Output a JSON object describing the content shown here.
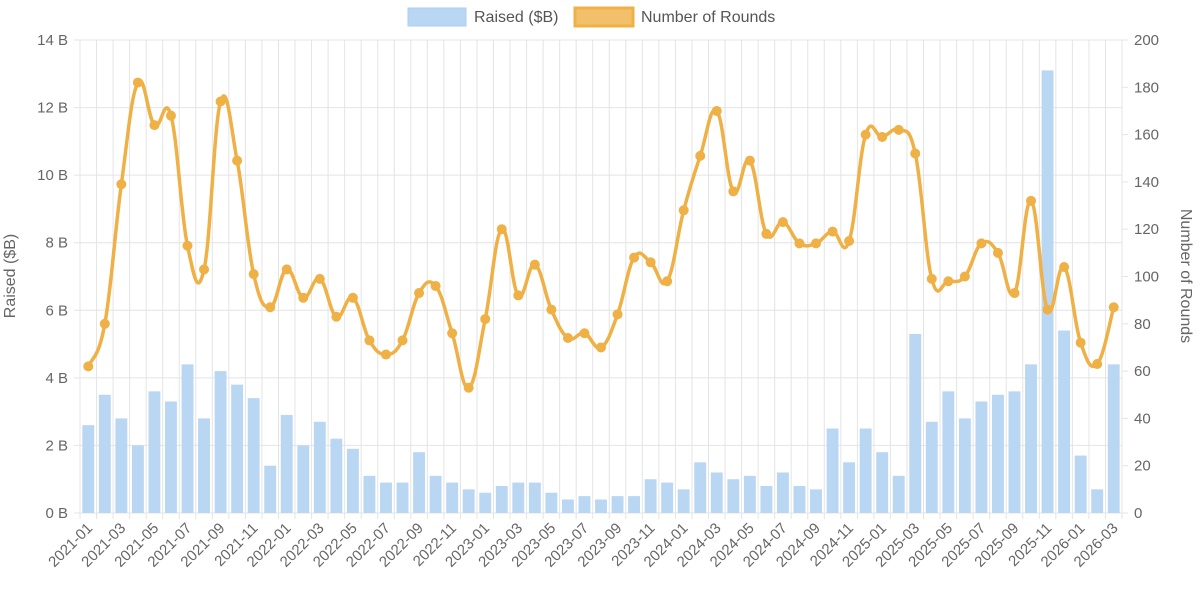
{
  "chart_data": {
    "type": "bar+line",
    "legend_position": "top-center",
    "grid": true,
    "legend": [
      {
        "label": "Raised ($B)",
        "swatch": "bar"
      },
      {
        "label": "Number of Rounds",
        "swatch": "line"
      }
    ],
    "y_left": {
      "label": "Raised ($B)",
      "range": [
        0,
        14
      ],
      "ticks": [
        "0 B",
        "2 B",
        "4 B",
        "6 B",
        "8 B",
        "10 B",
        "12 B",
        "14 B"
      ]
    },
    "y_right": {
      "label": "Number of Rounds",
      "range": [
        0,
        200
      ],
      "ticks": [
        "0",
        "20",
        "40",
        "60",
        "80",
        "100",
        "120",
        "140",
        "160",
        "180",
        "200"
      ]
    },
    "x_tick_labels": [
      "2021-01",
      "2021-03",
      "2021-05",
      "2021-07",
      "2021-09",
      "2021-11",
      "2022-01",
      "2022-03",
      "2022-05",
      "2022-07",
      "2022-09",
      "2022-11",
      "2023-01",
      "2023-03",
      "2023-05",
      "2023-07",
      "2023-09",
      "2023-11",
      "2024-01",
      "2024-03",
      "2024-05",
      "2024-07",
      "2024-09",
      "2024-11",
      "2025-01",
      "2025-03",
      "2025-05",
      "2025-07",
      "2025-09",
      "2025-11",
      "2026-01",
      "2026-03"
    ],
    "categories": [
      "2021-01",
      "2021-02",
      "2021-03",
      "2021-04",
      "2021-05",
      "2021-06",
      "2021-07",
      "2021-08",
      "2021-09",
      "2021-10",
      "2021-11",
      "2021-12",
      "2022-01",
      "2022-02",
      "2022-03",
      "2022-04",
      "2022-05",
      "2022-06",
      "2022-07",
      "2022-08",
      "2022-09",
      "2022-10",
      "2022-11",
      "2022-12",
      "2023-01",
      "2023-02",
      "2023-03",
      "2023-04",
      "2023-05",
      "2023-06",
      "2023-07",
      "2023-08",
      "2023-09",
      "2023-10",
      "2023-11",
      "2023-12",
      "2024-01",
      "2024-02",
      "2024-03",
      "2024-04",
      "2024-05",
      "2024-06",
      "2024-07",
      "2024-08",
      "2024-09",
      "2024-10",
      "2024-11",
      "2024-12",
      "2025-01",
      "2025-02",
      "2025-03",
      "2025-04",
      "2025-05",
      "2025-06",
      "2025-07",
      "2025-08",
      "2025-09",
      "2025-10",
      "2025-11",
      "2025-12",
      "2026-01",
      "2026-02",
      "2026-03"
    ],
    "series": [
      {
        "name": "Raised ($B)",
        "kind": "bar",
        "axis": "left",
        "color": "#b9d7f3",
        "values": [
          2.6,
          3.5,
          2.8,
          2.0,
          3.6,
          3.3,
          4.4,
          2.8,
          4.2,
          3.8,
          3.4,
          1.4,
          2.9,
          2.0,
          2.7,
          2.2,
          1.9,
          1.1,
          0.9,
          0.9,
          1.8,
          1.1,
          0.9,
          0.7,
          0.6,
          0.8,
          0.9,
          0.9,
          0.6,
          0.4,
          0.5,
          0.4,
          0.5,
          0.5,
          1.0,
          0.9,
          0.7,
          1.5,
          1.2,
          1.0,
          1.1,
          0.8,
          1.2,
          0.8,
          0.7,
          2.5,
          1.5,
          2.5,
          1.8,
          1.1,
          5.3,
          2.7,
          3.6,
          2.8,
          3.3,
          3.5,
          3.6,
          4.4,
          13.1,
          5.4,
          1.7,
          0.7,
          4.4
        ]
      },
      {
        "name": "Number of Rounds",
        "kind": "line",
        "axis": "right",
        "color": "#efb046",
        "values": [
          62,
          80,
          139,
          182,
          164,
          168,
          113,
          103,
          174,
          149,
          101,
          87,
          103,
          91,
          99,
          83,
          91,
          73,
          67,
          73,
          93,
          96,
          76,
          53,
          82,
          120,
          92,
          105,
          86,
          74,
          76,
          70,
          84,
          108,
          106,
          98,
          128,
          151,
          170,
          136,
          149,
          118,
          123,
          114,
          114,
          119,
          115,
          160,
          159,
          162,
          152,
          99,
          98,
          100,
          114,
          110,
          93,
          132,
          86,
          104,
          72,
          63,
          87
        ]
      }
    ]
  }
}
